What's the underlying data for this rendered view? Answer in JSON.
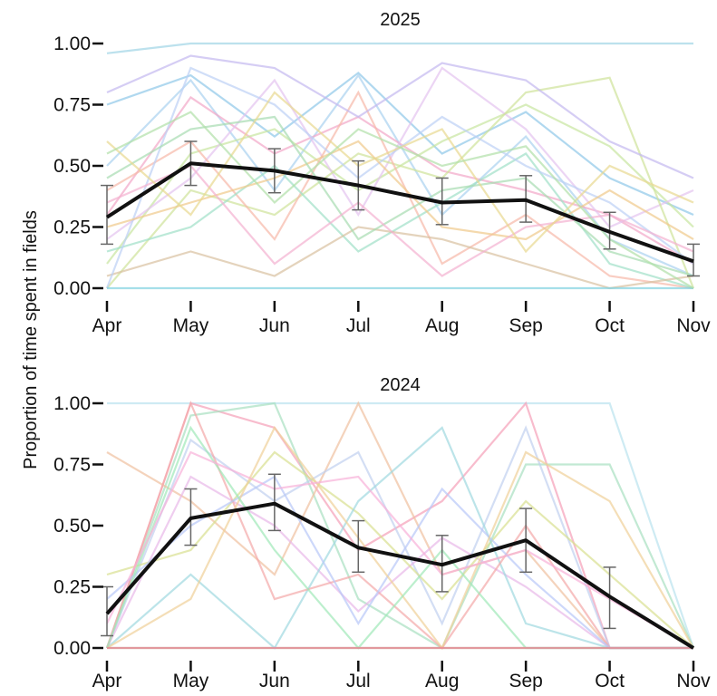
{
  "figure": {
    "ylabel": "Proportion of time spent in fields"
  },
  "chart_data": [
    {
      "type": "line",
      "title": "2025",
      "categories": [
        "Apr",
        "May",
        "Jun",
        "Jul",
        "Aug",
        "Sep",
        "Oct",
        "Nov"
      ],
      "ylim": [
        0,
        1
      ],
      "yticks": [
        "0.00",
        "0.25",
        "0.50",
        "0.75",
        "1.00"
      ],
      "grid": false,
      "legend": "none",
      "mean": {
        "values": [
          0.29,
          0.51,
          0.48,
          0.42,
          0.35,
          0.36,
          0.23,
          0.11
        ],
        "err_low": [
          0.18,
          0.42,
          0.39,
          0.32,
          0.26,
          0.27,
          0.16,
          0.05
        ],
        "err_high": [
          0.42,
          0.6,
          0.57,
          0.52,
          0.45,
          0.46,
          0.31,
          0.18
        ],
        "color": "#111111"
      },
      "individuals": [
        {
          "values": [
            0.96,
            1.0,
            1.0,
            1.0,
            1.0,
            1.0,
            1.0,
            1.0
          ],
          "color": "#9fd4e6"
        },
        {
          "values": [
            0.75,
            0.87,
            0.62,
            0.88,
            0.55,
            0.72,
            0.45,
            0.3
          ],
          "color": "#8fc7e8"
        },
        {
          "values": [
            0.5,
            0.85,
            0.4,
            0.87,
            0.3,
            0.62,
            0.2,
            0.05
          ],
          "color": "#a9d1f0"
        },
        {
          "values": [
            0.3,
            0.78,
            0.55,
            0.7,
            0.48,
            0.4,
            0.3,
            0.1
          ],
          "color": "#f2a7c8"
        },
        {
          "values": [
            0.1,
            0.55,
            0.65,
            0.4,
            0.6,
            0.75,
            0.58,
            0.25
          ],
          "color": "#c8e6a0"
        },
        {
          "values": [
            0.2,
            0.45,
            0.85,
            0.3,
            0.9,
            0.65,
            0.25,
            0.4
          ],
          "color": "#e4c3f0"
        },
        {
          "values": [
            0.0,
            0.4,
            0.3,
            0.55,
            0.45,
            0.8,
            0.86,
            0.0
          ],
          "color": "#cfe39a"
        },
        {
          "values": [
            0.4,
            0.6,
            0.2,
            0.8,
            0.1,
            0.3,
            0.05,
            0.0
          ],
          "color": "#f6b8a8"
        },
        {
          "values": [
            0.15,
            0.25,
            0.5,
            0.15,
            0.35,
            0.55,
            0.1,
            0.0
          ],
          "color": "#9fe0c8"
        },
        {
          "values": [
            0.05,
            0.15,
            0.05,
            0.25,
            0.2,
            0.1,
            0.0,
            0.05
          ],
          "color": "#d9c0a0"
        },
        {
          "values": [
            0.0,
            0.9,
            0.75,
            0.45,
            0.7,
            0.5,
            0.35,
            0.1
          ],
          "color": "#bcd0f5"
        },
        {
          "values": [
            0.25,
            0.35,
            0.45,
            0.6,
            0.25,
            0.2,
            0.4,
            0.2
          ],
          "color": "#f0c98a"
        },
        {
          "values": [
            0.45,
            0.65,
            0.7,
            0.2,
            0.4,
            0.45,
            0.15,
            0.05
          ],
          "color": "#a6dcb0"
        },
        {
          "values": [
            0.35,
            0.5,
            0.1,
            0.35,
            0.05,
            0.25,
            0.3,
            0.15
          ],
          "color": "#f4b0d0"
        },
        {
          "values": [
            0.8,
            0.95,
            0.9,
            0.7,
            0.92,
            0.85,
            0.6,
            0.45
          ],
          "color": "#c3b8f0"
        },
        {
          "values": [
            0.6,
            0.3,
            0.8,
            0.5,
            0.65,
            0.15,
            0.5,
            0.35
          ],
          "color": "#e8d890"
        },
        {
          "values": [
            0.0,
            0.0,
            0.0,
            0.0,
            0.0,
            0.0,
            0.0,
            0.0
          ],
          "color": "#7fd1df"
        },
        {
          "values": [
            0.55,
            0.72,
            0.35,
            0.65,
            0.5,
            0.58,
            0.2,
            0.0
          ],
          "color": "#b0e0a8"
        }
      ]
    },
    {
      "type": "line",
      "title": "2024",
      "categories": [
        "Apr",
        "May",
        "Jun",
        "Jul",
        "Aug",
        "Sep",
        "Oct",
        "Nov"
      ],
      "ylim": [
        0,
        1
      ],
      "yticks": [
        "0.00",
        "0.25",
        "0.50",
        "0.75",
        "1.00"
      ],
      "grid": false,
      "legend": "none",
      "mean": {
        "values": [
          0.14,
          0.53,
          0.59,
          0.41,
          0.34,
          0.44,
          0.21,
          0.0
        ],
        "err_low": [
          0.05,
          0.42,
          0.48,
          0.31,
          0.23,
          0.31,
          0.08,
          0.0
        ],
        "err_high": [
          0.25,
          0.65,
          0.71,
          0.52,
          0.46,
          0.57,
          0.33,
          0.0
        ],
        "color": "#111111"
      },
      "individuals": [
        {
          "values": [
            1.0,
            1.0,
            1.0,
            1.0,
            1.0,
            1.0,
            1.0,
            0.0
          ],
          "color": "#b9e3ee"
        },
        {
          "values": [
            0.0,
            1.0,
            0.9,
            0.4,
            0.6,
            1.0,
            0.0,
            0.0
          ],
          "color": "#f5a0b8"
        },
        {
          "values": [
            0.0,
            0.95,
            1.0,
            0.2,
            0.0,
            0.75,
            0.75,
            0.0
          ],
          "color": "#a8e0c0"
        },
        {
          "values": [
            0.8,
            0.6,
            0.3,
            1.0,
            0.3,
            0.4,
            0.0,
            0.0
          ],
          "color": "#f0c0a0"
        },
        {
          "values": [
            0.0,
            0.85,
            0.6,
            0.8,
            0.1,
            0.9,
            0.0,
            0.0
          ],
          "color": "#c0d0f0"
        },
        {
          "values": [
            0.0,
            0.0,
            0.0,
            0.0,
            0.0,
            0.0,
            0.0,
            0.0
          ],
          "color": "#a8d8a0"
        },
        {
          "values": [
            0.0,
            0.7,
            0.5,
            0.15,
            0.45,
            0.25,
            0.0,
            0.0
          ],
          "color": "#e8b8e8"
        },
        {
          "values": [
            0.3,
            0.4,
            0.8,
            0.55,
            0.2,
            0.6,
            0.3,
            0.0
          ],
          "color": "#d8e090"
        },
        {
          "values": [
            0.0,
            0.3,
            0.0,
            0.6,
            0.9,
            0.1,
            0.0,
            0.0
          ],
          "color": "#9fd8e0"
        },
        {
          "values": [
            0.0,
            1.0,
            0.2,
            0.3,
            0.0,
            0.5,
            0.0,
            0.0
          ],
          "color": "#f4a8a8"
        },
        {
          "values": [
            0.2,
            0.5,
            0.7,
            0.1,
            0.65,
            0.3,
            0.0,
            0.0
          ],
          "color": "#b8c8f8"
        },
        {
          "values": [
            0.0,
            0.2,
            0.9,
            0.45,
            0.0,
            0.8,
            0.6,
            0.0
          ],
          "color": "#f0d098"
        },
        {
          "values": [
            0.0,
            0.9,
            0.4,
            0.0,
            0.4,
            0.0,
            0.0,
            0.0
          ],
          "color": "#a0e8b8"
        },
        {
          "values": [
            0.1,
            0.8,
            0.65,
            0.7,
            0.3,
            0.4,
            0.2,
            0.0
          ],
          "color": "#f8b0d8"
        },
        {
          "values": [
            0.0,
            0.0,
            0.0,
            0.0,
            0.0,
            0.0,
            0.0,
            0.0
          ],
          "color": "#f07890"
        }
      ]
    }
  ]
}
